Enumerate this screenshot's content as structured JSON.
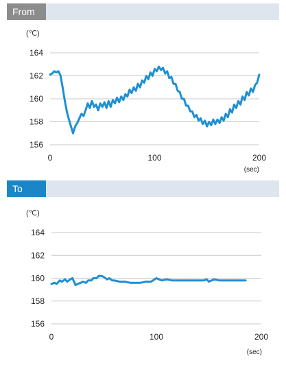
{
  "panels": [
    {
      "label": "From"
    },
    {
      "label": "To"
    }
  ],
  "chart_data": [
    {
      "type": "line",
      "title": "From",
      "ylabel": "(℃)",
      "xlabel": "(sec)",
      "xlim": [
        0,
        200
      ],
      "ylim": [
        156,
        164
      ],
      "xticks": [
        "0",
        "100",
        "200"
      ],
      "yticks": [
        "164",
        "162",
        "160",
        "158",
        "156"
      ],
      "grid": true,
      "color": "#1e8fd2",
      "series": [
        {
          "x": [
            0,
            2,
            4,
            6,
            8,
            10,
            12,
            14,
            16,
            18,
            20,
            22,
            24,
            26,
            28,
            30,
            32,
            34,
            36,
            38,
            40,
            42,
            44,
            46,
            48,
            50,
            52,
            54,
            56,
            58,
            60,
            62,
            64,
            66,
            68,
            70,
            72,
            74,
            76,
            78,
            80,
            82,
            84,
            86,
            88,
            90,
            92,
            94,
            96,
            98,
            100,
            102,
            104,
            106,
            108,
            110,
            112,
            114,
            116,
            118,
            120,
            122,
            124,
            126,
            128,
            130,
            132,
            134,
            136,
            138,
            140,
            142,
            144,
            146,
            148,
            150,
            152,
            154,
            156,
            158,
            160,
            162,
            164,
            166,
            168,
            170,
            172,
            174,
            176,
            178,
            180,
            182,
            184,
            186,
            188,
            190,
            192,
            194,
            196,
            198,
            200
          ],
          "values": [
            162.1,
            162.2,
            162.4,
            162.3,
            162.4,
            162.0,
            161.0,
            159.9,
            158.9,
            158.2,
            157.6,
            157.0,
            157.6,
            157.9,
            158.3,
            158.7,
            158.5,
            159.0,
            159.6,
            159.2,
            159.8,
            159.3,
            159.5,
            159.0,
            159.6,
            159.3,
            159.7,
            159.2,
            159.8,
            159.3,
            159.9,
            159.6,
            160.1,
            159.7,
            160.2,
            159.9,
            160.4,
            160.2,
            160.8,
            160.5,
            161.0,
            160.7,
            161.3,
            161.0,
            161.6,
            161.4,
            162.0,
            161.7,
            162.3,
            162.0,
            162.6,
            162.4,
            162.8,
            162.5,
            162.7,
            162.2,
            162.4,
            161.8,
            161.9,
            161.3,
            161.3,
            160.7,
            160.6,
            160.0,
            160.0,
            159.4,
            159.4,
            158.9,
            158.9,
            158.4,
            158.6,
            158.1,
            158.3,
            157.8,
            158.1,
            157.6,
            158.0,
            157.7,
            158.2,
            157.8,
            158.2,
            157.9,
            158.4,
            158.1,
            158.7,
            158.4,
            159.1,
            158.8,
            159.5,
            159.2,
            159.8,
            159.5,
            160.2,
            159.9,
            160.6,
            160.3,
            160.9,
            160.6,
            161.2,
            161.4,
            162.1
          ]
        }
      ]
    },
    {
      "type": "line",
      "title": "To",
      "ylabel": "(℃)",
      "xlabel": "(sec)",
      "xlim": [
        0,
        200
      ],
      "ylim": [
        156,
        164
      ],
      "xticks": [
        "0",
        "100",
        "200"
      ],
      "yticks": [
        "164",
        "162",
        "160",
        "158",
        "156"
      ],
      "grid": true,
      "color": "#1e8fd2",
      "series": [
        {
          "x": [
            0,
            3,
            5,
            8,
            10,
            13,
            15,
            18,
            20,
            23,
            25,
            28,
            30,
            33,
            35,
            38,
            40,
            43,
            45,
            48,
            50,
            53,
            55,
            58,
            60,
            65,
            70,
            75,
            80,
            85,
            90,
            95,
            100,
            105,
            110,
            115,
            120,
            125,
            130,
            135,
            140,
            145,
            148,
            150,
            155,
            160,
            165,
            170,
            175,
            180,
            185
          ],
          "values": [
            159.5,
            159.6,
            159.5,
            159.8,
            159.7,
            159.9,
            159.7,
            159.9,
            160.0,
            159.4,
            159.5,
            159.6,
            159.7,
            159.6,
            159.8,
            159.8,
            160.0,
            160.0,
            160.2,
            160.2,
            160.1,
            159.9,
            160.0,
            159.8,
            159.8,
            159.7,
            159.7,
            159.6,
            159.6,
            159.6,
            159.7,
            159.7,
            160.0,
            159.8,
            159.9,
            159.8,
            159.8,
            159.8,
            159.8,
            159.8,
            159.8,
            159.8,
            159.9,
            159.7,
            159.9,
            159.8,
            159.8,
            159.8,
            159.8,
            159.8,
            159.8
          ]
        }
      ]
    }
  ]
}
